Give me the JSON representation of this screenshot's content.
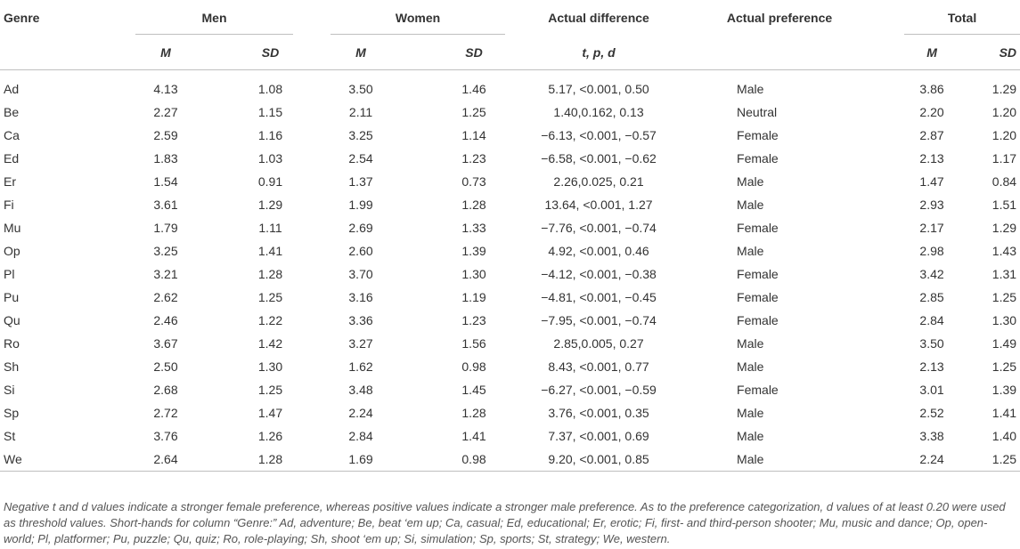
{
  "header": {
    "genre": "Genre",
    "men": "Men",
    "women": "Women",
    "actual_difference": "Actual difference",
    "actual_preference": "Actual preference",
    "total": "Total",
    "m": "M",
    "sd": "SD",
    "tpd": "t, p, d"
  },
  "rows": [
    {
      "genre": "Ad",
      "men_m": "4.13",
      "men_sd": "1.08",
      "women_m": "3.50",
      "women_sd": "1.46",
      "diff": "5.17, <0.001, 0.50",
      "pref": "Male",
      "total_m": "3.86",
      "total_sd": "1.29"
    },
    {
      "genre": "Be",
      "men_m": "2.27",
      "men_sd": "1.15",
      "women_m": "2.11",
      "women_sd": "1.25",
      "diff": "1.40,0.162, 0.13",
      "pref": "Neutral",
      "total_m": "2.20",
      "total_sd": "1.20"
    },
    {
      "genre": "Ca",
      "men_m": "2.59",
      "men_sd": "1.16",
      "women_m": "3.25",
      "women_sd": "1.14",
      "diff": "−6.13, <0.001, −0.57",
      "pref": "Female",
      "total_m": "2.87",
      "total_sd": "1.20"
    },
    {
      "genre": "Ed",
      "men_m": "1.83",
      "men_sd": "1.03",
      "women_m": "2.54",
      "women_sd": "1.23",
      "diff": "−6.58, <0.001, −0.62",
      "pref": "Female",
      "total_m": "2.13",
      "total_sd": "1.17"
    },
    {
      "genre": "Er",
      "men_m": "1.54",
      "men_sd": "0.91",
      "women_m": "1.37",
      "women_sd": "0.73",
      "diff": "2.26,0.025, 0.21",
      "pref": "Male",
      "total_m": "1.47",
      "total_sd": "0.84"
    },
    {
      "genre": "Fi",
      "men_m": "3.61",
      "men_sd": "1.29",
      "women_m": "1.99",
      "women_sd": "1.28",
      "diff": "13.64, <0.001, 1.27",
      "pref": "Male",
      "total_m": "2.93",
      "total_sd": "1.51"
    },
    {
      "genre": "Mu",
      "men_m": "1.79",
      "men_sd": "1.11",
      "women_m": "2.69",
      "women_sd": "1.33",
      "diff": "−7.76, <0.001, −0.74",
      "pref": "Female",
      "total_m": "2.17",
      "total_sd": "1.29"
    },
    {
      "genre": "Op",
      "men_m": "3.25",
      "men_sd": "1.41",
      "women_m": "2.60",
      "women_sd": "1.39",
      "diff": "4.92, <0.001, 0.46",
      "pref": "Male",
      "total_m": "2.98",
      "total_sd": "1.43"
    },
    {
      "genre": "Pl",
      "men_m": "3.21",
      "men_sd": "1.28",
      "women_m": "3.70",
      "women_sd": "1.30",
      "diff": "−4.12, <0.001, −0.38",
      "pref": "Female",
      "total_m": "3.42",
      "total_sd": "1.31"
    },
    {
      "genre": "Pu",
      "men_m": "2.62",
      "men_sd": "1.25",
      "women_m": "3.16",
      "women_sd": "1.19",
      "diff": "−4.81, <0.001, −0.45",
      "pref": "Female",
      "total_m": "2.85",
      "total_sd": "1.25"
    },
    {
      "genre": "Qu",
      "men_m": "2.46",
      "men_sd": "1.22",
      "women_m": "3.36",
      "women_sd": "1.23",
      "diff": "−7.95, <0.001, −0.74",
      "pref": "Female",
      "total_m": "2.84",
      "total_sd": "1.30"
    },
    {
      "genre": "Ro",
      "men_m": "3.67",
      "men_sd": "1.42",
      "women_m": "3.27",
      "women_sd": "1.56",
      "diff": "2.85,0.005, 0.27",
      "pref": "Male",
      "total_m": "3.50",
      "total_sd": "1.49"
    },
    {
      "genre": "Sh",
      "men_m": "2.50",
      "men_sd": "1.30",
      "women_m": "1.62",
      "women_sd": "0.98",
      "diff": "8.43, <0.001, 0.77",
      "pref": "Male",
      "total_m": "2.13",
      "total_sd": "1.25"
    },
    {
      "genre": "Si",
      "men_m": "2.68",
      "men_sd": "1.25",
      "women_m": "3.48",
      "women_sd": "1.45",
      "diff": "−6.27, <0.001, −0.59",
      "pref": "Female",
      "total_m": "3.01",
      "total_sd": "1.39"
    },
    {
      "genre": "Sp",
      "men_m": "2.72",
      "men_sd": "1.47",
      "women_m": "2.24",
      "women_sd": "1.28",
      "diff": "3.76, <0.001, 0.35",
      "pref": "Male",
      "total_m": "2.52",
      "total_sd": "1.41"
    },
    {
      "genre": "St",
      "men_m": "3.76",
      "men_sd": "1.26",
      "women_m": "2.84",
      "women_sd": "1.41",
      "diff": "7.37, <0.001, 0.69",
      "pref": "Male",
      "total_m": "3.38",
      "total_sd": "1.40"
    },
    {
      "genre": "We",
      "men_m": "2.64",
      "men_sd": "1.28",
      "women_m": "1.69",
      "women_sd": "0.98",
      "diff": "9.20, <0.001, 0.85",
      "pref": "Male",
      "total_m": "2.24",
      "total_sd": "1.25"
    }
  ],
  "footnote": "Negative t and d values indicate a stronger female preference, whereas positive values indicate a stronger male preference. As to the preference categorization, d values of at least 0.20 were used as threshold values. Short-hands for column “Genre:” Ad, adventure; Be, beat ‘em up; Ca, casual; Ed, educational; Er, erotic; Fi, first- and third-person shooter; Mu, music and dance; Op, open-world; Pl, platformer; Pu, puzzle; Qu, quiz; Ro, role-playing; Sh, shoot ‘em up; Si, simulation; Sp, sports; St, strategy; We, western."
}
